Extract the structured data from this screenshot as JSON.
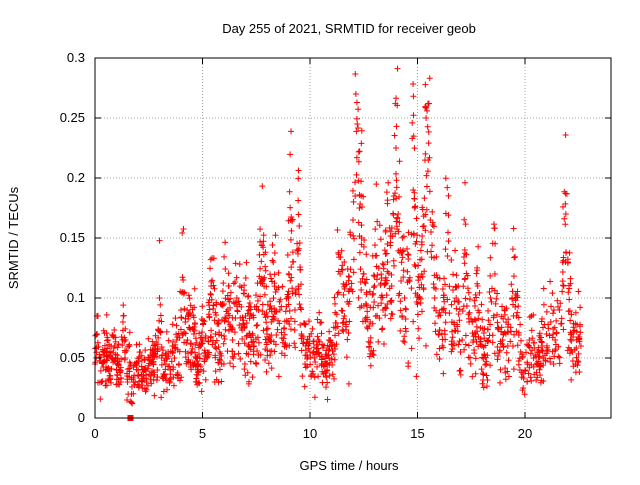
{
  "chart_data": {
    "type": "scatter",
    "title": "Day 255 of 2021, SRMTID for receiver geob",
    "xlabel": "GPS time / hours",
    "ylabel": "SRMTID / TECUs",
    "xlim": [
      0,
      24
    ],
    "ylim": [
      0,
      0.3
    ],
    "x_ticks": [
      0,
      5,
      10,
      15,
      20
    ],
    "x_tick_labels": [
      "0",
      "5",
      "10",
      "15",
      "20"
    ],
    "y_ticks": [
      0,
      0.05,
      0.1,
      0.15,
      0.2,
      0.25,
      0.3
    ],
    "y_tick_labels": [
      "0",
      "0.05",
      "0.1",
      "0.15",
      "0.2",
      "0.25",
      "0.3"
    ],
    "grid": true,
    "marker": "plus",
    "color": "#ff0000",
    "series": [
      {
        "name": "SRMTID",
        "points_hint": "dense scatter ~2000 points; listed values are representative samples",
        "x": [
          0.0,
          0.1,
          0.2,
          0.3,
          0.4,
          0.5,
          0.6,
          0.7,
          0.8,
          0.9,
          1.0,
          1.1,
          1.2,
          1.3,
          1.4,
          1.5,
          1.6,
          1.7,
          1.8,
          1.9,
          2.0,
          2.1,
          2.2,
          2.3,
          2.4,
          2.5,
          2.6,
          2.7,
          2.8,
          2.9,
          3.0,
          3.1,
          3.2,
          3.3,
          3.4,
          3.5,
          3.6,
          3.7,
          3.8,
          3.9,
          4.0,
          4.1,
          4.2,
          4.3,
          4.4,
          4.5,
          4.6,
          4.7,
          4.8,
          4.9,
          5.0,
          5.2,
          5.4,
          5.6,
          5.8,
          6.0,
          6.2,
          6.4,
          6.6,
          6.8,
          7.0,
          7.2,
          7.4,
          7.6,
          7.8,
          8.0,
          8.2,
          8.4,
          8.6,
          8.8,
          9.0,
          9.1,
          9.2,
          9.3,
          9.4,
          9.5,
          9.6,
          9.8,
          10.0,
          10.2,
          10.4,
          10.6,
          10.8,
          11.0,
          11.2,
          11.4,
          11.6,
          11.8,
          12.0,
          12.1,
          12.2,
          12.3,
          12.4,
          12.5,
          12.6,
          12.8,
          13.0,
          13.2,
          13.4,
          13.6,
          13.8,
          13.9,
          14.0,
          14.1,
          14.2,
          14.4,
          14.6,
          14.8,
          15.0,
          15.2,
          15.3,
          15.4,
          15.5,
          15.6,
          15.8,
          16.0,
          16.2,
          16.4,
          16.6,
          16.8,
          17.0,
          17.2,
          17.4,
          17.6,
          17.8,
          18.0,
          18.2,
          18.4,
          18.6,
          18.8,
          19.0,
          19.2,
          19.4,
          19.6,
          19.8,
          20.0,
          20.2,
          20.4,
          20.6,
          20.8,
          21.0,
          21.2,
          21.4,
          21.6,
          21.8,
          21.9,
          22.0,
          22.2,
          22.4,
          22.6
        ],
        "y": [
          0.045,
          0.07,
          0.05,
          0.03,
          0.055,
          0.04,
          0.065,
          0.035,
          0.05,
          0.06,
          0.04,
          0.045,
          0.03,
          0.08,
          0.05,
          0.035,
          0.06,
          0.02,
          0.03,
          0.045,
          0.035,
          0.055,
          0.025,
          0.04,
          0.03,
          0.05,
          0.035,
          0.045,
          0.06,
          0.04,
          0.1,
          0.05,
          0.035,
          0.045,
          0.055,
          0.04,
          0.06,
          0.05,
          0.065,
          0.045,
          0.09,
          0.115,
          0.08,
          0.065,
          0.075,
          0.055,
          0.07,
          0.05,
          0.045,
          0.06,
          0.065,
          0.05,
          0.11,
          0.07,
          0.055,
          0.095,
          0.08,
          0.065,
          0.1,
          0.075,
          0.085,
          0.07,
          0.06,
          0.09,
          0.115,
          0.07,
          0.08,
          0.105,
          0.09,
          0.075,
          0.1,
          0.165,
          0.13,
          0.09,
          0.14,
          0.16,
          0.07,
          0.06,
          0.055,
          0.05,
          0.065,
          0.045,
          0.04,
          0.06,
          0.075,
          0.12,
          0.085,
          0.095,
          0.165,
          0.185,
          0.245,
          0.175,
          0.15,
          0.12,
          0.095,
          0.08,
          0.11,
          0.125,
          0.09,
          0.145,
          0.11,
          0.185,
          0.225,
          0.17,
          0.14,
          0.1,
          0.115,
          0.19,
          0.095,
          0.12,
          0.16,
          0.25,
          0.215,
          0.165,
          0.1,
          0.07,
          0.09,
          0.135,
          0.08,
          0.1,
          0.055,
          0.14,
          0.08,
          0.065,
          0.11,
          0.06,
          0.045,
          0.1,
          0.12,
          0.055,
          0.07,
          0.06,
          0.1,
          0.085,
          0.055,
          0.04,
          0.065,
          0.05,
          0.045,
          0.06,
          0.07,
          0.08,
          0.065,
          0.09,
          0.11,
          0.17,
          0.13,
          0.055,
          0.065,
          0.06
        ],
        "ylim_note": "one point drawn at the baseline near x=1.6, y=0"
      }
    ]
  }
}
